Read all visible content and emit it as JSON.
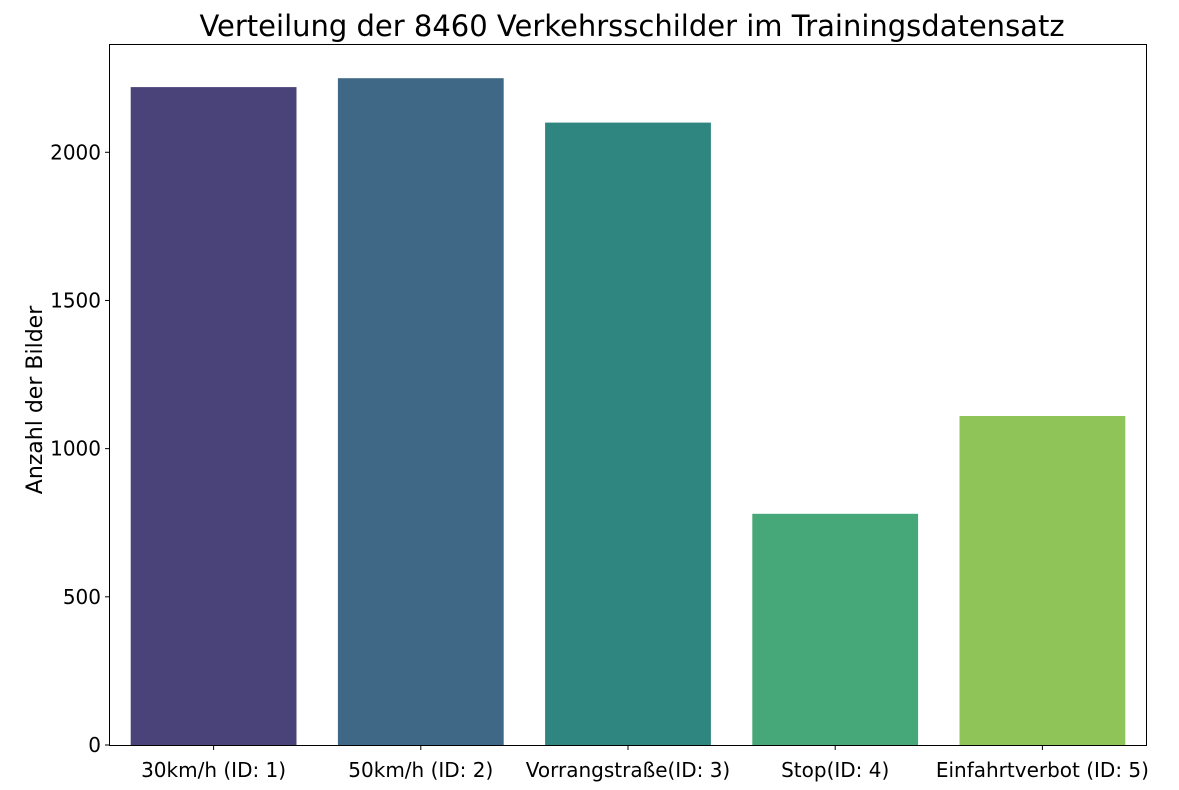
{
  "chart_data": {
    "type": "bar",
    "title": "Verteilung der 8460 Verkehrsschilder im Trainingsdatensatz",
    "xlabel": "",
    "ylabel": "Anzahl der Bilder",
    "categories": [
      "30km/h (ID: 1)",
      "50km/h (ID: 2)",
      "Vorrangstraße(ID: 3)",
      "Stop(ID: 4)",
      "Einfahrtverbot (ID: 5)"
    ],
    "values": [
      2220,
      2250,
      2100,
      780,
      1110
    ],
    "colors": [
      "#4a437a",
      "#3e6885",
      "#2f8580",
      "#46a878",
      "#8ec458"
    ],
    "ylim": [
      0,
      2362
    ],
    "yticks": [
      0,
      500,
      1000,
      1500,
      2000
    ],
    "grid": false,
    "legend": "none"
  }
}
